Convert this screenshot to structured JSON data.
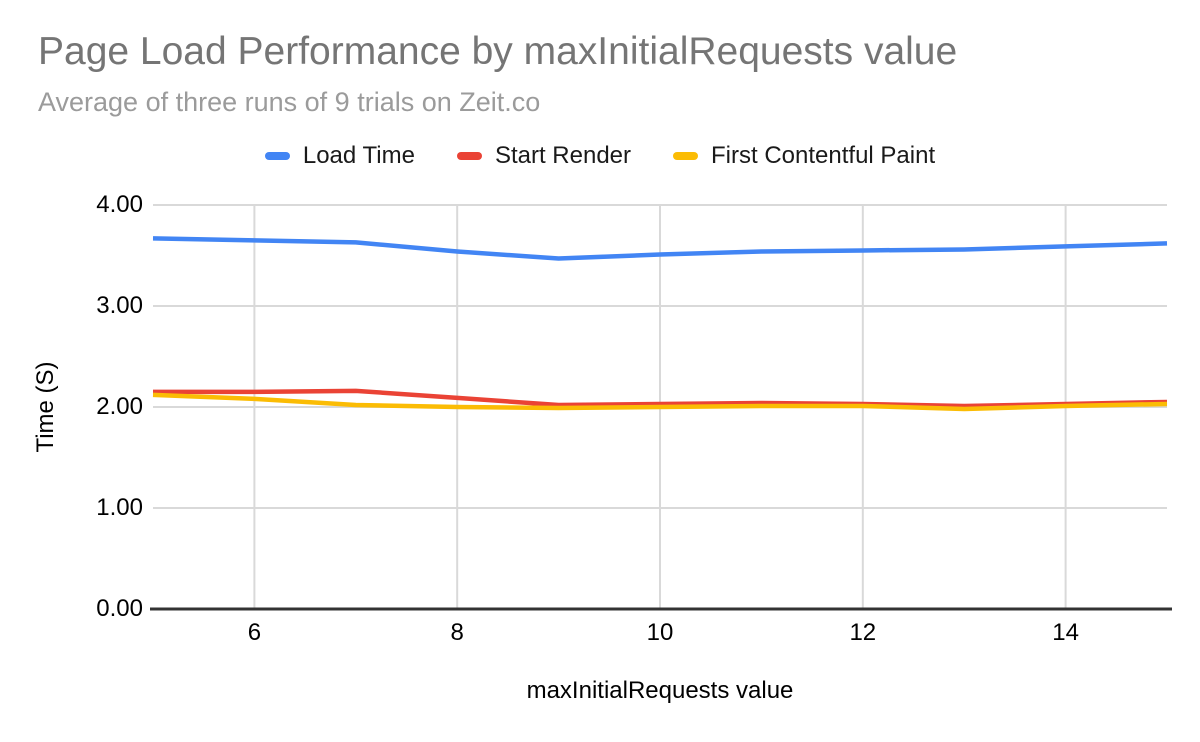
{
  "chart_data": {
    "type": "line",
    "title": "Page Load Performance by maxInitialRequests value",
    "subtitle": "Average of three runs of 9 trials on Zeit.co",
    "xlabel": "maxInitialRequests value",
    "ylabel": "Time (S)",
    "xlim": [
      5,
      15
    ],
    "ylim": [
      0,
      4
    ],
    "grid": true,
    "legend_position": "top-center",
    "x": [
      5,
      6,
      7,
      8,
      9,
      10,
      11,
      12,
      13,
      14,
      15
    ],
    "x_ticks": [
      6,
      8,
      10,
      12,
      14
    ],
    "y_ticks": [
      "0.00",
      "1.00",
      "2.00",
      "3.00",
      "4.00"
    ],
    "series": [
      {
        "name": "Load Time",
        "color": "#4285F4",
        "values": [
          3.67,
          3.65,
          3.63,
          3.54,
          3.47,
          3.51,
          3.54,
          3.55,
          3.56,
          3.59,
          3.62
        ]
      },
      {
        "name": "Start Render",
        "color": "#EA4335",
        "values": [
          2.15,
          2.15,
          2.16,
          2.09,
          2.02,
          2.03,
          2.04,
          2.03,
          2.01,
          2.03,
          2.05
        ]
      },
      {
        "name": "First Contentful Paint",
        "color": "#FBBC04",
        "values": [
          2.12,
          2.08,
          2.02,
          2.0,
          1.99,
          2.0,
          2.01,
          2.01,
          1.98,
          2.01,
          2.03
        ]
      }
    ],
    "colors": {
      "title": "#757575",
      "subtitle": "#9b9b9b",
      "tick": "#000000",
      "grid": "#d9d9d9",
      "axis_line": "#333333"
    }
  }
}
